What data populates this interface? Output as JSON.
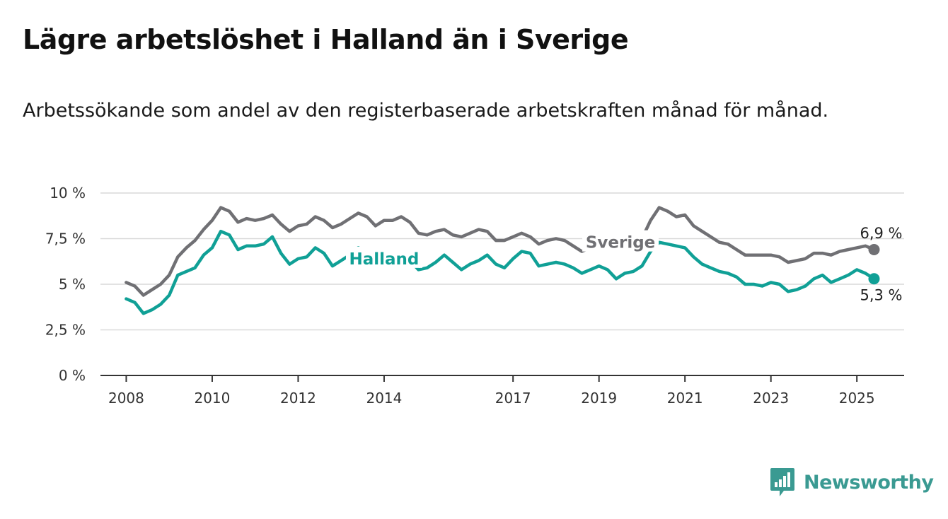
{
  "title": "Lägre arbetslöshet i Halland än i Sverige",
  "subtitle": "Arbetssökande som andel av den registerbaserade arbetskraften månad för månad.",
  "brand": {
    "name": "Newsworthy",
    "color": "#3a9a92",
    "icon": "bar-chart-speech-bubble-icon"
  },
  "chart_data": {
    "type": "line",
    "title": "Lägre arbetslöshet i Halland än i Sverige",
    "subtitle": "Arbetssökande som andel av den registerbaserade arbetskraften månad för månad.",
    "xlabel": "",
    "ylabel": "",
    "xlim": [
      2007.4,
      2026.1
    ],
    "ylim": [
      0,
      10
    ],
    "x_ticks": [
      2008,
      2010,
      2012,
      2014,
      2017,
      2019,
      2021,
      2023,
      2025
    ],
    "y_ticks": [
      0,
      2.5,
      5,
      7.5,
      10
    ],
    "y_tick_labels": [
      "0 %",
      "2,5 %",
      "5 %",
      "7,5 %",
      "10 %"
    ],
    "grid": true,
    "legend": "inline labels",
    "series": [
      {
        "name": "Sverige",
        "color": "#707074",
        "end_label": "6,9 %",
        "points": [
          [
            2008.0,
            5.1
          ],
          [
            2008.2,
            4.9
          ],
          [
            2008.4,
            4.4
          ],
          [
            2008.6,
            4.7
          ],
          [
            2008.8,
            5.0
          ],
          [
            2009.0,
            5.5
          ],
          [
            2009.2,
            6.5
          ],
          [
            2009.4,
            7.0
          ],
          [
            2009.6,
            7.4
          ],
          [
            2009.8,
            8.0
          ],
          [
            2010.0,
            8.5
          ],
          [
            2010.2,
            9.2
          ],
          [
            2010.4,
            9.0
          ],
          [
            2010.6,
            8.4
          ],
          [
            2010.8,
            8.6
          ],
          [
            2011.0,
            8.5
          ],
          [
            2011.2,
            8.6
          ],
          [
            2011.4,
            8.8
          ],
          [
            2011.6,
            8.3
          ],
          [
            2011.8,
            7.9
          ],
          [
            2012.0,
            8.2
          ],
          [
            2012.2,
            8.3
          ],
          [
            2012.4,
            8.7
          ],
          [
            2012.6,
            8.5
          ],
          [
            2012.8,
            8.1
          ],
          [
            2013.0,
            8.3
          ],
          [
            2013.2,
            8.6
          ],
          [
            2013.4,
            8.9
          ],
          [
            2013.6,
            8.7
          ],
          [
            2013.8,
            8.2
          ],
          [
            2014.0,
            8.5
          ],
          [
            2014.2,
            8.5
          ],
          [
            2014.4,
            8.7
          ],
          [
            2014.6,
            8.4
          ],
          [
            2014.8,
            7.8
          ],
          [
            2015.0,
            7.7
          ],
          [
            2015.2,
            7.9
          ],
          [
            2015.4,
            8.0
          ],
          [
            2015.6,
            7.7
          ],
          [
            2015.8,
            7.6
          ],
          [
            2016.0,
            7.8
          ],
          [
            2016.2,
            8.0
          ],
          [
            2016.4,
            7.9
          ],
          [
            2016.6,
            7.4
          ],
          [
            2016.8,
            7.4
          ],
          [
            2017.0,
            7.6
          ],
          [
            2017.2,
            7.8
          ],
          [
            2017.4,
            7.6
          ],
          [
            2017.6,
            7.2
          ],
          [
            2017.8,
            7.4
          ],
          [
            2018.0,
            7.5
          ],
          [
            2018.2,
            7.4
          ],
          [
            2018.4,
            7.1
          ],
          [
            2018.6,
            6.8
          ],
          [
            2018.8,
            7.0
          ],
          [
            2019.0,
            7.0
          ],
          [
            2019.2,
            7.1
          ],
          [
            2019.4,
            7.3
          ],
          [
            2019.6,
            7.2
          ],
          [
            2019.8,
            7.4
          ],
          [
            2020.0,
            7.5
          ],
          [
            2020.2,
            8.5
          ],
          [
            2020.4,
            9.2
          ],
          [
            2020.6,
            9.0
          ],
          [
            2020.8,
            8.7
          ],
          [
            2021.0,
            8.8
          ],
          [
            2021.2,
            8.2
          ],
          [
            2021.4,
            7.9
          ],
          [
            2021.6,
            7.6
          ],
          [
            2021.8,
            7.3
          ],
          [
            2022.0,
            7.2
          ],
          [
            2022.2,
            6.9
          ],
          [
            2022.4,
            6.6
          ],
          [
            2022.6,
            6.6
          ],
          [
            2022.8,
            6.6
          ],
          [
            2023.0,
            6.6
          ],
          [
            2023.2,
            6.5
          ],
          [
            2023.4,
            6.2
          ],
          [
            2023.6,
            6.3
          ],
          [
            2023.8,
            6.4
          ],
          [
            2024.0,
            6.7
          ],
          [
            2024.2,
            6.7
          ],
          [
            2024.4,
            6.6
          ],
          [
            2024.6,
            6.8
          ],
          [
            2024.8,
            6.9
          ],
          [
            2025.0,
            7.0
          ],
          [
            2025.2,
            7.1
          ],
          [
            2025.4,
            6.9
          ]
        ]
      },
      {
        "name": "Halland",
        "color": "#10a096",
        "end_label": "5,3 %",
        "points": [
          [
            2008.0,
            4.2
          ],
          [
            2008.2,
            4.0
          ],
          [
            2008.4,
            3.4
          ],
          [
            2008.6,
            3.6
          ],
          [
            2008.8,
            3.9
          ],
          [
            2009.0,
            4.4
          ],
          [
            2009.2,
            5.5
          ],
          [
            2009.4,
            5.7
          ],
          [
            2009.6,
            5.9
          ],
          [
            2009.8,
            6.6
          ],
          [
            2010.0,
            7.0
          ],
          [
            2010.2,
            7.9
          ],
          [
            2010.4,
            7.7
          ],
          [
            2010.6,
            6.9
          ],
          [
            2010.8,
            7.1
          ],
          [
            2011.0,
            7.1
          ],
          [
            2011.2,
            7.2
          ],
          [
            2011.4,
            7.6
          ],
          [
            2011.6,
            6.7
          ],
          [
            2011.8,
            6.1
          ],
          [
            2012.0,
            6.4
          ],
          [
            2012.2,
            6.5
          ],
          [
            2012.4,
            7.0
          ],
          [
            2012.6,
            6.7
          ],
          [
            2012.8,
            6.0
          ],
          [
            2013.0,
            6.3
          ],
          [
            2013.2,
            6.6
          ],
          [
            2013.4,
            7.0
          ],
          [
            2013.6,
            6.8
          ],
          [
            2013.8,
            6.3
          ],
          [
            2014.0,
            6.4
          ],
          [
            2014.2,
            6.6
          ],
          [
            2014.4,
            6.8
          ],
          [
            2014.6,
            6.3
          ],
          [
            2014.8,
            5.8
          ],
          [
            2015.0,
            5.9
          ],
          [
            2015.2,
            6.2
          ],
          [
            2015.4,
            6.6
          ],
          [
            2015.6,
            6.2
          ],
          [
            2015.8,
            5.8
          ],
          [
            2016.0,
            6.1
          ],
          [
            2016.2,
            6.3
          ],
          [
            2016.4,
            6.6
          ],
          [
            2016.6,
            6.1
          ],
          [
            2016.8,
            5.9
          ],
          [
            2017.0,
            6.4
          ],
          [
            2017.2,
            6.8
          ],
          [
            2017.4,
            6.7
          ],
          [
            2017.6,
            6.0
          ],
          [
            2017.8,
            6.1
          ],
          [
            2018.0,
            6.2
          ],
          [
            2018.2,
            6.1
          ],
          [
            2018.4,
            5.9
          ],
          [
            2018.6,
            5.6
          ],
          [
            2018.8,
            5.8
          ],
          [
            2019.0,
            6.0
          ],
          [
            2019.2,
            5.8
          ],
          [
            2019.4,
            5.3
          ],
          [
            2019.6,
            5.6
          ],
          [
            2019.8,
            5.7
          ],
          [
            2020.0,
            6.0
          ],
          [
            2020.2,
            6.8
          ],
          [
            2020.4,
            7.3
          ],
          [
            2020.6,
            7.2
          ],
          [
            2020.8,
            7.1
          ],
          [
            2021.0,
            7.0
          ],
          [
            2021.2,
            6.5
          ],
          [
            2021.4,
            6.1
          ],
          [
            2021.6,
            5.9
          ],
          [
            2021.8,
            5.7
          ],
          [
            2022.0,
            5.6
          ],
          [
            2022.2,
            5.4
          ],
          [
            2022.4,
            5.0
          ],
          [
            2022.6,
            5.0
          ],
          [
            2022.8,
            4.9
          ],
          [
            2023.0,
            5.1
          ],
          [
            2023.2,
            5.0
          ],
          [
            2023.4,
            4.6
          ],
          [
            2023.6,
            4.7
          ],
          [
            2023.8,
            4.9
          ],
          [
            2024.0,
            5.3
          ],
          [
            2024.2,
            5.5
          ],
          [
            2024.4,
            5.1
          ],
          [
            2024.6,
            5.3
          ],
          [
            2024.8,
            5.5
          ],
          [
            2025.0,
            5.8
          ],
          [
            2025.2,
            5.6
          ],
          [
            2025.4,
            5.3
          ]
        ]
      }
    ],
    "annotations": [
      {
        "series": "Halland",
        "text": "Halland",
        "at_x": 2014.0
      },
      {
        "series": "Sverige",
        "text": "Sverige",
        "at_x": 2019.5
      }
    ]
  }
}
